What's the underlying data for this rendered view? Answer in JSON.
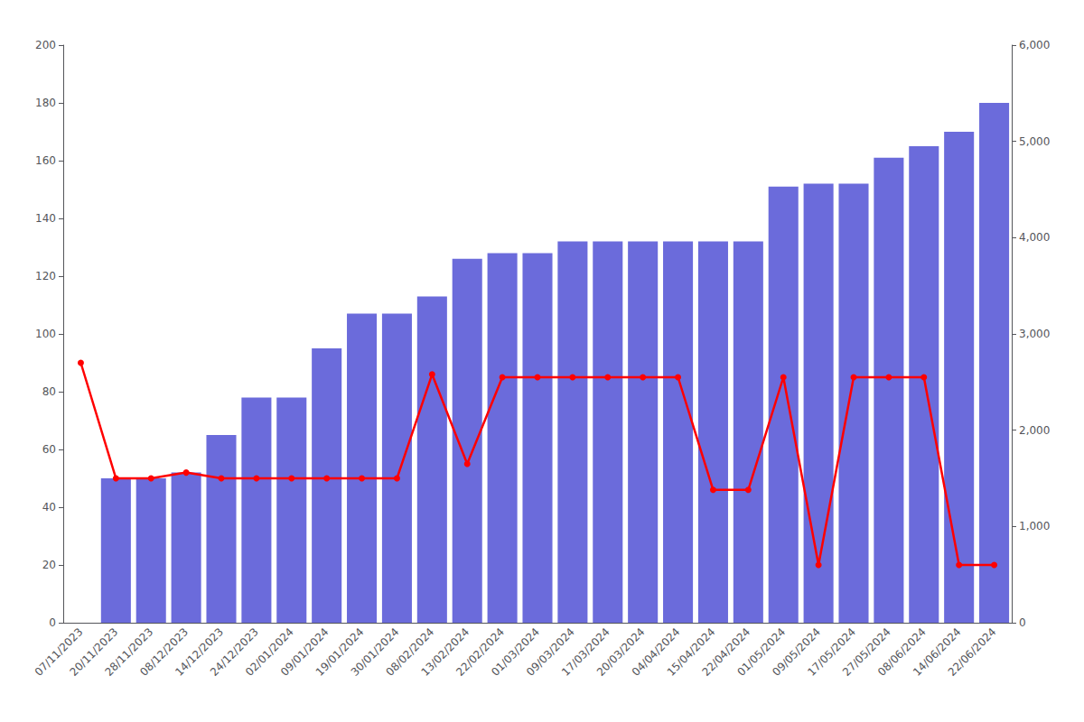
{
  "chart_data": {
    "type": "bar",
    "categories": [
      "07/11/2023",
      "20/11/2023",
      "28/11/2023",
      "08/12/2023",
      "14/12/2023",
      "24/12/2023",
      "02/01/2024",
      "09/01/2024",
      "19/01/2024",
      "30/01/2024",
      "08/02/2024",
      "13/02/2024",
      "22/02/2024",
      "01/03/2024",
      "09/03/2024",
      "17/03/2024",
      "20/03/2024",
      "04/04/2024",
      "15/04/2024",
      "22/04/2024",
      "01/05/2024",
      "09/05/2024",
      "17/05/2024",
      "27/05/2024",
      "08/06/2024",
      "14/06/2024",
      "22/06/2024"
    ],
    "series": [
      {
        "type": "bar",
        "color": "#6b6bdb",
        "values": [
          0,
          50,
          50,
          52,
          65,
          78,
          78,
          95,
          107,
          107,
          113,
          126,
          128,
          128,
          132,
          132,
          132,
          132,
          132,
          132,
          151,
          152,
          152,
          161,
          165,
          170,
          180
        ]
      },
      {
        "type": "line",
        "color": "#ff0000",
        "marker": "circle",
        "values": [
          90,
          50,
          50,
          52,
          50,
          50,
          50,
          50,
          50,
          50,
          86,
          55,
          85,
          85,
          85,
          85,
          85,
          85,
          46,
          46,
          85,
          20,
          85,
          85,
          85,
          20,
          20
        ]
      }
    ],
    "ylim": [
      0,
      200
    ],
    "yticks": [
      0,
      20,
      40,
      60,
      80,
      100,
      120,
      140,
      160,
      180,
      200
    ],
    "y2lim": [
      0,
      6000
    ],
    "y2ticks": [
      0,
      1000,
      2000,
      3000,
      4000,
      5000,
      6000
    ],
    "grid": false
  }
}
